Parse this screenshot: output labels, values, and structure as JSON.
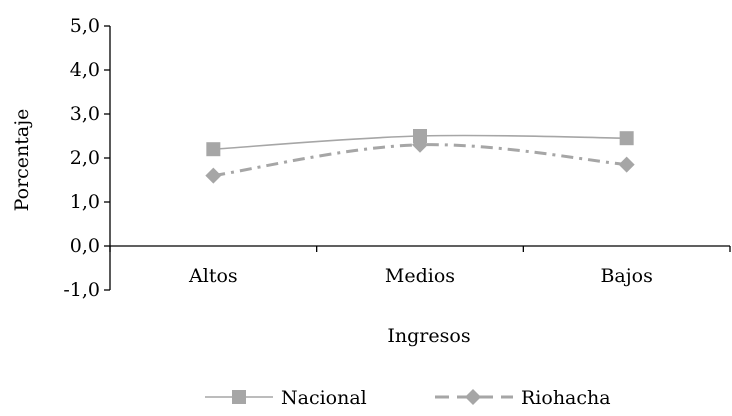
{
  "chart_data": {
    "type": "line",
    "categories": [
      "Altos",
      "Medios",
      "Bajos"
    ],
    "series": [
      {
        "name": "Nacional",
        "values": [
          2.2,
          2.5,
          2.45
        ],
        "color": "#a6a6a6",
        "marker": "square",
        "dash": "solid"
      },
      {
        "name": "Riohacha",
        "values": [
          1.6,
          2.3,
          1.85
        ],
        "color": "#a6a6a6",
        "marker": "diamond",
        "dash": "dash-dot"
      }
    ],
    "xlabel": "Ingresos",
    "ylabel": "Porcentaje",
    "ylim": [
      -1.0,
      5.0
    ],
    "yticks": [
      "-1,0",
      "0,0",
      "1,0",
      "2,0",
      "3,0",
      "4,0",
      "5,0"
    ],
    "ytick_values": [
      -1,
      0,
      1,
      2,
      3,
      4,
      5
    ],
    "legend_position": "bottom",
    "grid": false
  }
}
